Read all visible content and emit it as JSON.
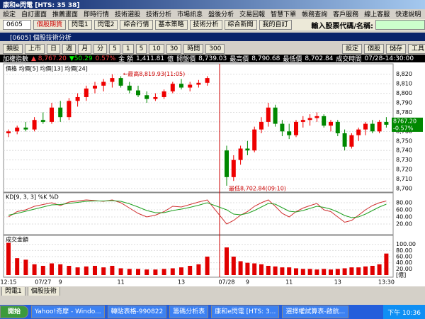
{
  "window": {
    "title": "康和e閃電 [HTS: 35 38]",
    "subtitle": "[0605] 個股技術分析"
  },
  "menu": [
    "設定",
    "自訂畫面",
    "推薦畫面",
    "即時行情",
    "技術選股",
    "技術分析",
    "市場訊息",
    "盤後分析",
    "交易回報",
    "智慧下單",
    "帳務查詢",
    "客戶服務",
    "線上客服",
    "快速說明"
  ],
  "toolbar": {
    "code": "0605",
    "buttons": [
      "個股期貨",
      "閃電1",
      "閃電2",
      "綜合行情",
      "基本策略",
      "技術分析",
      "綜合新聞",
      "我的自訂"
    ],
    "search_label": "輸入股票代碼/名稱:"
  },
  "controls": {
    "left": [
      "類股",
      "上市",
      "日",
      "週",
      "月",
      "分",
      "5",
      "1",
      "5",
      "10",
      "30",
      "時間",
      "300"
    ],
    "right": [
      "設定",
      "個股",
      "儲存",
      "工具"
    ]
  },
  "info": [
    "加權指數",
    "▲ 8,767.20",
    "▼50.29",
    "0.57%",
    "金 額",
    "1,411.81",
    "億",
    "開盤價",
    "8,739.03",
    "最高價",
    "8,790.68",
    "最低價",
    "8,702.84",
    "成交時間",
    "07/28-14:30:00"
  ],
  "chart_data": {
    "type": "candlestick",
    "legend": "價格 均價[5] 均價[13] 均價[24]",
    "annotations": [
      "←最高8,819.93(11:05)",
      "最低8,702.84(09:10)"
    ],
    "last": [
      "8767.20",
      "-0.57%"
    ],
    "categories": [
      "12:15",
      null,
      null,
      null,
      "07/27",
      null,
      "9",
      null,
      null,
      null,
      null,
      null,
      null,
      "11",
      null,
      null,
      null,
      null,
      null,
      null,
      "13",
      null,
      null,
      null,
      "07/28",
      null,
      null,
      "9",
      null,
      null,
      null,
      null,
      null,
      "11",
      null,
      null,
      null,
      null,
      null,
      null,
      "13",
      null,
      null,
      null,
      null,
      null,
      null,
      "13:30"
    ],
    "ohlc": [
      [
        8758,
        8762,
        8754,
        8760
      ],
      [
        8760,
        8766,
        8757,
        8764
      ],
      [
        8764,
        8770,
        8760,
        8762
      ],
      [
        8762,
        8775,
        8760,
        8772
      ],
      [
        8772,
        8780,
        8768,
        8770
      ],
      [
        8770,
        8790,
        8768,
        8785
      ],
      [
        8785,
        8792,
        8770,
        8775
      ],
      [
        8775,
        8795,
        8772,
        8792
      ],
      [
        8792,
        8800,
        8786,
        8796
      ],
      [
        8796,
        8808,
        8792,
        8805
      ],
      [
        8805,
        8812,
        8800,
        8808
      ],
      [
        8808,
        8815,
        8802,
        8812
      ],
      [
        8812,
        8820,
        8806,
        8816
      ],
      [
        8816,
        8818,
        8806,
        8808
      ],
      [
        8808,
        8812,
        8800,
        8803
      ],
      [
        8803,
        8808,
        8796,
        8798
      ],
      [
        8798,
        8802,
        8790,
        8794
      ],
      [
        8794,
        8800,
        8792,
        8796
      ],
      [
        8796,
        8804,
        8794,
        8802
      ],
      [
        8802,
        8812,
        8800,
        8810
      ],
      [
        8810,
        8815,
        8804,
        8806
      ],
      [
        8806,
        8812,
        8802,
        8809
      ],
      [
        8809,
        8814,
        8806,
        8811
      ],
      [
        8811,
        8818,
        8808,
        8816
      ],
      [
        8740,
        8745,
        8703,
        8712
      ],
      [
        8712,
        8735,
        8708,
        8730
      ],
      [
        8730,
        8745,
        8725,
        8742
      ],
      [
        8742,
        8750,
        8735,
        8740
      ],
      [
        8740,
        8765,
        8738,
        8762
      ],
      [
        8762,
        8775,
        8758,
        8770
      ],
      [
        8770,
        8790,
        8765,
        8785
      ],
      [
        8785,
        8788,
        8765,
        8768
      ],
      [
        8768,
        8772,
        8755,
        8760
      ],
      [
        8760,
        8768,
        8752,
        8756
      ],
      [
        8756,
        8772,
        8754,
        8770
      ],
      [
        8770,
        8776,
        8764,
        8772
      ],
      [
        8772,
        8778,
        8766,
        8774
      ],
      [
        8774,
        8780,
        8770,
        8776
      ],
      [
        8776,
        8778,
        8764,
        8766
      ],
      [
        8766,
        8772,
        8760,
        8770
      ],
      [
        8770,
        8772,
        8755,
        8758
      ],
      [
        8758,
        8762,
        8740,
        8744
      ],
      [
        8744,
        8758,
        8742,
        8756
      ],
      [
        8756,
        8764,
        8750,
        8762
      ],
      [
        8762,
        8770,
        8756,
        8768
      ],
      [
        8768,
        8772,
        8758,
        8760
      ],
      [
        8760,
        8772,
        8758,
        8770
      ],
      [
        8770,
        8775,
        8764,
        8767
      ]
    ],
    "ylim": [
      8697,
      8825
    ],
    "yticks": [
      {
        "value": 8700,
        "label": "8,700"
      },
      {
        "value": 8710,
        "label": "8,710"
      },
      {
        "value": 8720,
        "label": "8,720"
      },
      {
        "value": 8730,
        "label": "8,730"
      },
      {
        "value": 8740,
        "label": "8,740"
      },
      {
        "value": 8750,
        "label": "8,750"
      },
      {
        "value": 8760,
        "label": "8,760"
      },
      {
        "value": 8770,
        "label": "8,770"
      },
      {
        "value": 8780,
        "label": "8,780"
      },
      {
        "value": 8790,
        "label": "8,790"
      },
      {
        "value": 8800,
        "label": "8,800"
      },
      {
        "value": 8810,
        "label": "8,810"
      },
      {
        "value": 8820,
        "label": "8,820"
      }
    ],
    "kd": {
      "title": "KD[9, 3, 3] %K %D",
      "ylim": [
        0,
        100
      ],
      "yticks": [
        {
          "value": 20,
          "label": "20.00"
        },
        {
          "value": 40,
          "label": "40.00"
        },
        {
          "value": 60,
          "label": "60.00"
        },
        {
          "value": 80,
          "label": "80.00"
        }
      ],
      "series": [
        {
          "name": "%K",
          "color": "#d03030",
          "values": [
            40,
            55,
            60,
            70,
            75,
            80,
            72,
            82,
            85,
            88,
            86,
            84,
            88,
            80,
            65,
            50,
            40,
            45,
            55,
            70,
            68,
            75,
            82,
            88,
            20,
            30,
            45,
            55,
            70,
            80,
            88,
            70,
            50,
            40,
            55,
            65,
            72,
            78,
            60,
            55,
            40,
            25,
            30,
            45,
            60,
            72,
            80,
            85
          ]
        },
        {
          "name": "%D",
          "color": "#20a020",
          "values": [
            45,
            50,
            56,
            62,
            68,
            74,
            75,
            78,
            81,
            84,
            85,
            85,
            86,
            84,
            77,
            68,
            58,
            52,
            52,
            58,
            62,
            67,
            73,
            80,
            60,
            48,
            46,
            50,
            58,
            68,
            78,
            76,
            66,
            56,
            54,
            58,
            64,
            70,
            67,
            62,
            54,
            44,
            38,
            40,
            48,
            58,
            68,
            76
          ]
        }
      ]
    },
    "volume": {
      "title": "成交金額",
      "unit": "[億]",
      "ylim": [
        0,
        120
      ],
      "color": "#e00000",
      "yticks": [
        {
          "value": 20,
          "label": "20.00"
        },
        {
          "value": 40,
          "label": "40.00"
        },
        {
          "value": 60,
          "label": "60.00"
        },
        {
          "value": 80,
          "label": "80.00"
        },
        {
          "value": 100,
          "label": "100.00"
        }
      ],
      "values": [
        105,
        55,
        50,
        35,
        30,
        38,
        35,
        30,
        25,
        28,
        30,
        25,
        30,
        22,
        20,
        20,
        18,
        18,
        20,
        22,
        25,
        30,
        35,
        60,
        90,
        60,
        45,
        40,
        38,
        35,
        30,
        28,
        25,
        25,
        22,
        20,
        20,
        18,
        20,
        18,
        20,
        22,
        25,
        25,
        28,
        30,
        35,
        70
      ]
    }
  },
  "tabs": [
    "閃電1",
    "個股技術"
  ],
  "taskbar": {
    "start": "開始",
    "items": [
      "Yahoo!奇摩 - Windo...",
      "轉貼表格-990822",
      "籌碼分析表",
      "康和e閃電 [HTS: 3...",
      "選擇權試算表-啟航..."
    ],
    "clock": "下午 10:36"
  }
}
